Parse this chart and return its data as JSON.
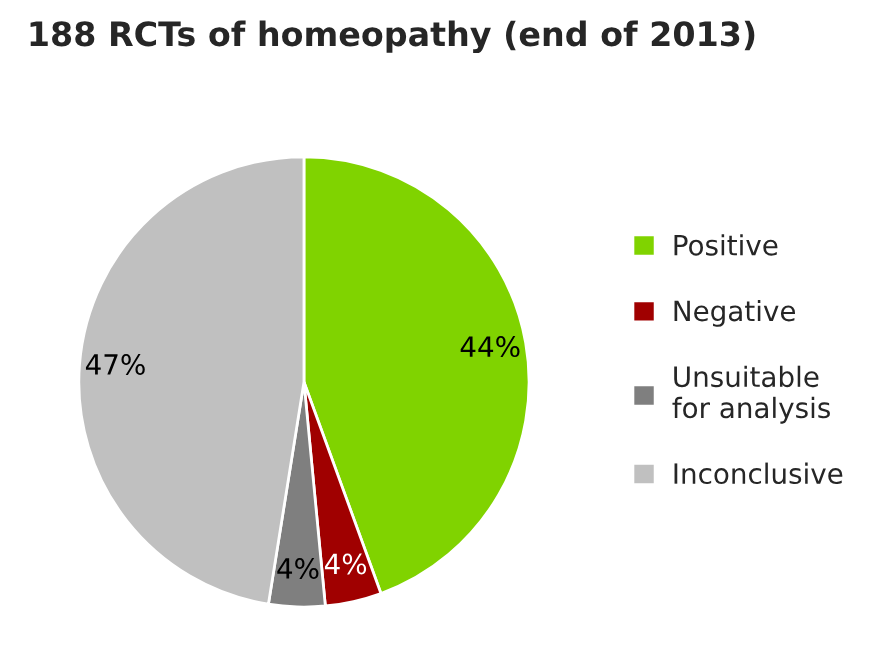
{
  "chart_data": {
    "type": "pie",
    "title": "188 RCTs of homeopathy (end of 2013)",
    "categories": [
      "Positive",
      "Negative",
      "Unsuitable\nfor analysis",
      "Inconclusive"
    ],
    "values": [
      44,
      4,
      4,
      47
    ],
    "value_labels": [
      "44%",
      "4%",
      "4%",
      "47%"
    ],
    "colors": [
      "#80d300",
      "#a00000",
      "#7f7f7f",
      "#c0c0c0"
    ],
    "legend": "right"
  }
}
